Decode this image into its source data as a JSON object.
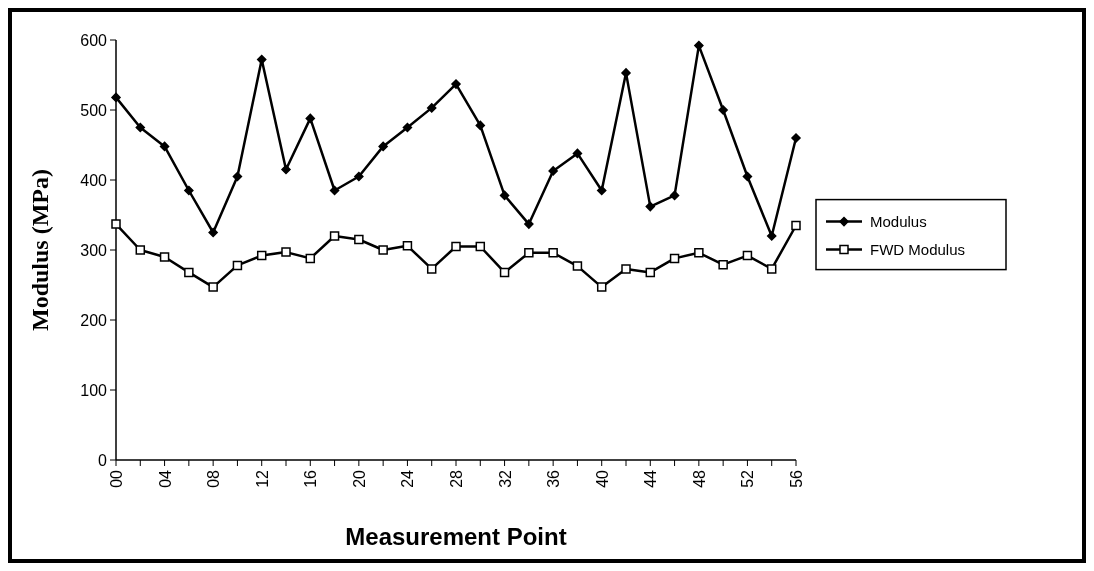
{
  "chart_data": {
    "type": "line",
    "xlabel": "Measurement Point",
    "ylabel": "Modulus (MPa)",
    "categories": [
      "00",
      null,
      "04",
      null,
      "08",
      null,
      "12",
      null,
      "16",
      null,
      "20",
      null,
      "24",
      null,
      "28",
      null,
      "32",
      null,
      "36",
      null,
      "40",
      null,
      "44",
      null,
      "48",
      null,
      "52",
      null,
      "56"
    ],
    "series": [
      {
        "name": "Modulus",
        "color": "#000000",
        "marker": "diamond",
        "values": [
          518,
          475,
          448,
          385,
          325,
          405,
          572,
          415,
          488,
          385,
          405,
          448,
          475,
          503,
          537,
          478,
          378,
          337,
          413,
          438,
          385,
          553,
          362,
          378,
          592,
          500,
          405,
          320,
          460
        ]
      },
      {
        "name": "FWD Modulus",
        "color": "#000000",
        "marker": "square",
        "values": [
          337,
          300,
          290,
          268,
          247,
          278,
          292,
          297,
          288,
          320,
          315,
          300,
          306,
          273,
          305,
          305,
          268,
          296,
          296,
          277,
          247,
          273,
          268,
          288,
          296,
          279,
          292,
          273,
          335
        ]
      }
    ],
    "ylim": [
      0,
      600
    ],
    "yticks": [
      0,
      100,
      200,
      300,
      400,
      500,
      600
    ],
    "legend": "right",
    "grid": false
  }
}
